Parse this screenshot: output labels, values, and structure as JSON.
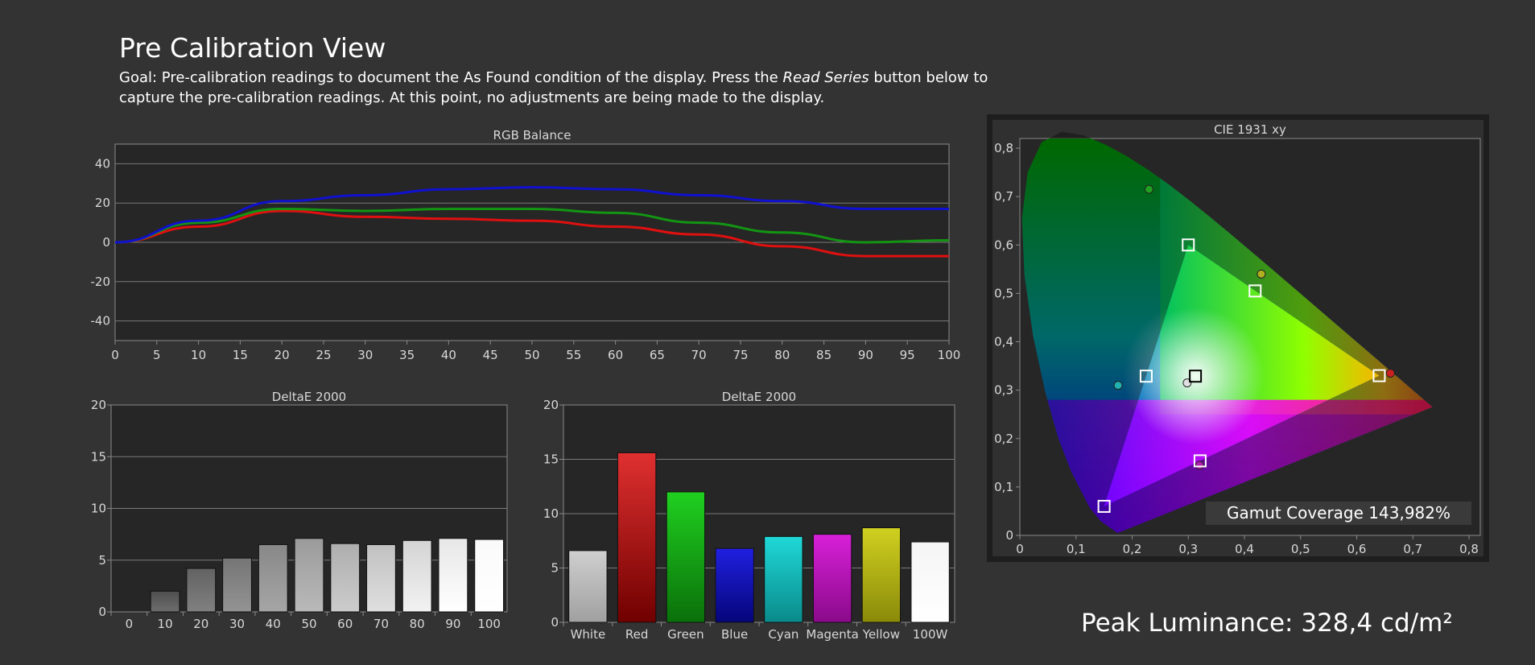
{
  "page": {
    "title": "Pre Calibration View",
    "goal_prefix": "Goal: Pre-calibration readings to document the As Found condition of the display. Press the ",
    "goal_emphasis": "Read Series",
    "goal_suffix": " button below to capture the pre-calibration readings. At this point, no adjustments are being made to the display.",
    "peak_luminance": "Peak Luminance: 328,4 cd/m²"
  },
  "colors": {
    "background": "#333333",
    "plot_bg": "#262626",
    "red": "#e01010",
    "green": "#139513",
    "blue": "#1010d0"
  },
  "chart_data": [
    {
      "type": "line",
      "title": "RGB Balance",
      "x": [
        0,
        10,
        20,
        30,
        40,
        50,
        60,
        70,
        80,
        90,
        100
      ],
      "xticks": [
        "0",
        "5",
        "10",
        "15",
        "20",
        "25",
        "30",
        "35",
        "40",
        "45",
        "50",
        "55",
        "60",
        "65",
        "70",
        "75",
        "80",
        "85",
        "90",
        "95",
        "100"
      ],
      "yticks": [
        "40",
        "20",
        "0",
        "-20",
        "-40"
      ],
      "xlim": [
        0,
        100
      ],
      "ylim": [
        -50,
        50
      ],
      "series": [
        {
          "color": "#e01010",
          "values": [
            0,
            8,
            16,
            13,
            12,
            11,
            8,
            4,
            -2,
            -7,
            -7
          ]
        },
        {
          "color": "#139513",
          "values": [
            0,
            10,
            17,
            16,
            17,
            17,
            15,
            10,
            5,
            0,
            1
          ]
        },
        {
          "color": "#1010d0",
          "values": [
            0,
            11,
            21,
            24,
            27,
            28,
            27,
            24,
            21,
            17,
            17
          ]
        }
      ]
    },
    {
      "type": "bar",
      "title": "DeltaE 2000",
      "categories": [
        "0",
        "10",
        "20",
        "30",
        "40",
        "50",
        "60",
        "70",
        "80",
        "90",
        "100"
      ],
      "values": [
        0,
        2.0,
        4.2,
        5.2,
        6.5,
        7.1,
        6.6,
        6.5,
        6.9,
        7.1,
        7.0
      ],
      "yticks": [
        "20",
        "15",
        "10",
        "5",
        "0"
      ],
      "ylim": [
        0,
        20
      ]
    },
    {
      "type": "bar",
      "title": "DeltaE 2000",
      "categories": [
        "White",
        "Red",
        "Green",
        "Blue",
        "Cyan",
        "Magenta",
        "Yellow",
        "100W"
      ],
      "values": [
        6.6,
        15.6,
        12.0,
        6.8,
        7.9,
        8.1,
        8.7,
        7.4
      ],
      "colors": [
        "#d9d9d9",
        "#cc0000",
        "#0fc70f",
        "#1010cc",
        "#12c8c8",
        "#c812c8",
        "#c8c812",
        "#ffffff"
      ],
      "yticks": [
        "20",
        "15",
        "10",
        "5",
        "0"
      ],
      "ylim": [
        0,
        20
      ]
    },
    {
      "type": "scatter",
      "title": "CIE 1931 xy",
      "xticks": [
        "0",
        "0,1",
        "0,2",
        "0,3",
        "0,4",
        "0,5",
        "0,6",
        "0,7",
        "0,8"
      ],
      "yticks": [
        "0,8",
        "0,7",
        "0,6",
        "0,5",
        "0,4",
        "0,3",
        "0,2",
        "0,1",
        "0"
      ],
      "xlim": [
        0,
        0.82
      ],
      "ylim": [
        0,
        0.82
      ],
      "targets": [
        {
          "x": 0.64,
          "y": 0.33
        },
        {
          "x": 0.3,
          "y": 0.6
        },
        {
          "x": 0.15,
          "y": 0.06
        },
        {
          "x": 0.225,
          "y": 0.329
        },
        {
          "x": 0.321,
          "y": 0.154
        },
        {
          "x": 0.419,
          "y": 0.505
        },
        {
          "x": 0.3127,
          "y": 0.329
        }
      ],
      "measured": [
        {
          "x": 0.66,
          "y": 0.335,
          "color": "#cc2020"
        },
        {
          "x": 0.23,
          "y": 0.715,
          "color": "#20a020"
        },
        {
          "x": 0.175,
          "y": 0.31,
          "color": "#20b0b0"
        },
        {
          "x": 0.32,
          "y": 0.145,
          "color": "#b020b0"
        },
        {
          "x": 0.43,
          "y": 0.54,
          "color": "#b0b020"
        },
        {
          "x": 0.298,
          "y": 0.315,
          "color": "#e0e0e0"
        }
      ],
      "gamut_coverage": "Gamut Coverage 143,982%"
    }
  ]
}
